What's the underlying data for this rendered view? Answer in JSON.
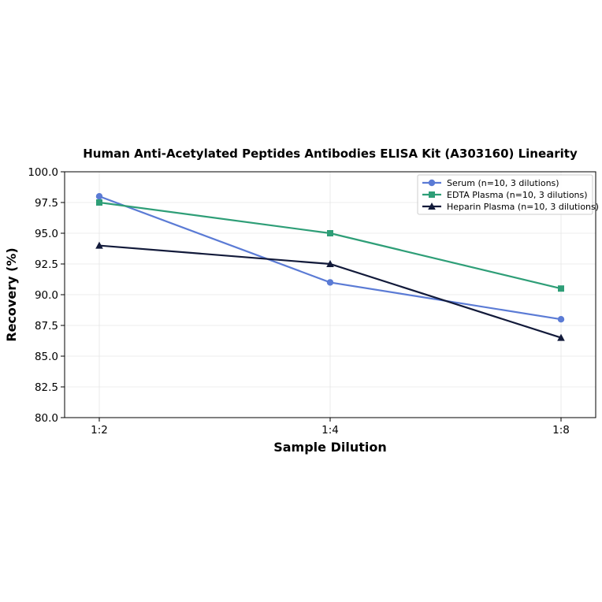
{
  "chart_data": {
    "type": "line",
    "title": "Human Anti-Acetylated Peptides Antibodies ELISA Kit (A303160) Linearity",
    "xlabel": "Sample Dilution",
    "ylabel": "Recovery (%)",
    "categories": [
      "1:2",
      "1:4",
      "1:8"
    ],
    "ylim": [
      80.0,
      100.0
    ],
    "yticks": [
      "80.0",
      "82.5",
      "85.0",
      "87.5",
      "90.0",
      "92.5",
      "95.0",
      "97.5",
      "100.0"
    ],
    "grid": true,
    "legend_position": "top-right",
    "series": [
      {
        "name": "Serum (n=10, 3 dilutions)",
        "values": [
          98.0,
          91.0,
          88.0
        ],
        "color": "#5b7bd5",
        "marker": "circle"
      },
      {
        "name": "EDTA Plasma (n=10, 3 dilutions)",
        "values": [
          97.5,
          95.0,
          90.5
        ],
        "color": "#2e9e77",
        "marker": "square"
      },
      {
        "name": "Heparin Plasma (n=10, 3 dilutions)",
        "values": [
          94.0,
          92.5,
          86.5
        ],
        "color": "#121a3a",
        "marker": "triangle"
      }
    ]
  }
}
